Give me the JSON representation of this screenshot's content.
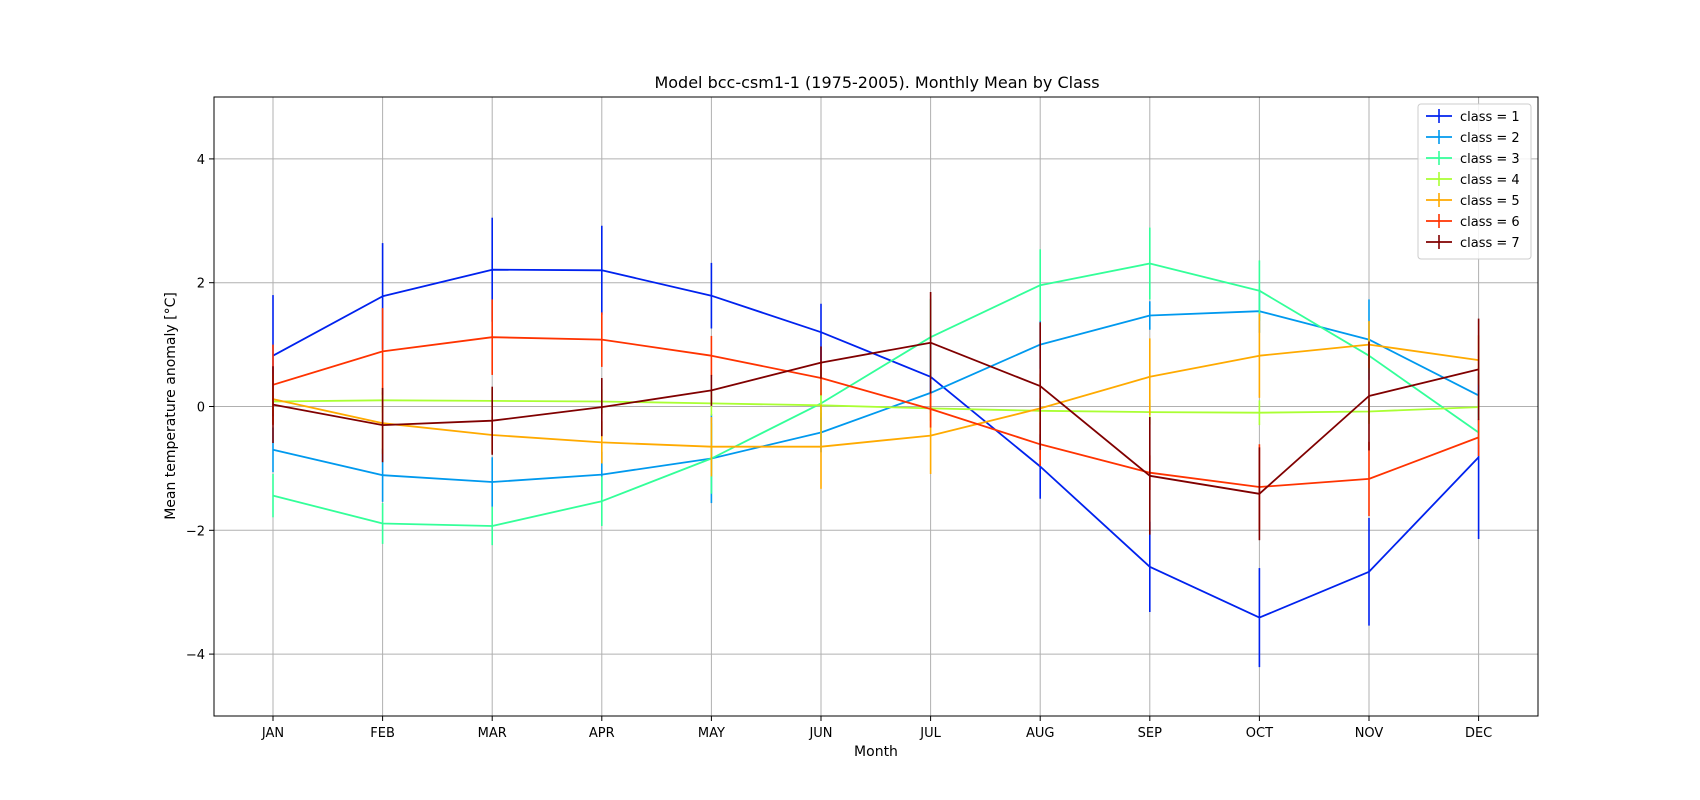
{
  "chart_data": {
    "type": "line",
    "title": "Model bcc-csm1-1 (1975-2005). Monthly Mean by Class",
    "xlabel": "Month",
    "ylabel": "Mean temperature anomaly [°C]",
    "categories": [
      "JAN",
      "FEB",
      "MAR",
      "APR",
      "MAY",
      "JUN",
      "JUL",
      "AUG",
      "SEP",
      "OCT",
      "NOV",
      "DEC"
    ],
    "ylim": [
      -5,
      5
    ],
    "yticks": [
      4,
      2,
      0,
      -2,
      -4
    ],
    "grid": true,
    "legend_position": "top-right",
    "series": [
      {
        "name": "class = 1",
        "color": "#0022ee",
        "values": [
          0.82,
          1.78,
          2.21,
          2.2,
          1.79,
          1.2,
          0.48,
          -0.97,
          -2.59,
          -3.41,
          -2.67,
          -0.82
        ],
        "errors": [
          0.98,
          0.86,
          0.84,
          0.72,
          0.53,
          0.46,
          0.55,
          0.52,
          0.73,
          0.8,
          0.87,
          1.32
        ]
      },
      {
        "name": "class = 2",
        "color": "#0099ee",
        "values": [
          -0.7,
          -1.11,
          -1.22,
          -1.1,
          -0.84,
          -0.42,
          0.22,
          1.0,
          1.47,
          1.54,
          1.08,
          0.18
        ],
        "errors": [
          0.36,
          0.43,
          0.4,
          0.37,
          0.72,
          0.32,
          0.33,
          0.39,
          0.23,
          0.35,
          0.65,
          0.36
        ]
      },
      {
        "name": "class = 3",
        "color": "#33ff99",
        "values": [
          -1.44,
          -1.89,
          -1.93,
          -1.53,
          -0.84,
          0.05,
          1.12,
          1.96,
          2.31,
          1.87,
          0.82,
          -0.42
        ],
        "errors": [
          0.35,
          0.33,
          0.31,
          0.4,
          0.57,
          0.56,
          0.62,
          0.58,
          0.58,
          0.49,
          0.28,
          0.2
        ]
      },
      {
        "name": "class = 4",
        "color": "#aaff33",
        "values": [
          0.08,
          0.1,
          0.09,
          0.08,
          0.05,
          0.02,
          -0.03,
          -0.07,
          -0.09,
          -0.1,
          -0.08,
          -0.01
        ],
        "errors": [
          0.2,
          0.2,
          0.2,
          0.2,
          0.2,
          0.2,
          0.2,
          0.2,
          0.2,
          0.2,
          0.2,
          0.2
        ]
      },
      {
        "name": "class = 5",
        "color": "#ffaa00",
        "values": [
          0.12,
          -0.27,
          -0.46,
          -0.58,
          -0.65,
          -0.65,
          -0.47,
          -0.03,
          0.48,
          0.82,
          1.0,
          0.75
        ],
        "errors": [
          0.4,
          0.5,
          0.3,
          0.34,
          0.48,
          0.68,
          0.62,
          0.56,
          0.62,
          0.68,
          0.38,
          0.4
        ]
      },
      {
        "name": "class = 6",
        "color": "#ff3300",
        "values": [
          0.35,
          0.89,
          1.12,
          1.08,
          0.82,
          0.46,
          -0.04,
          -0.61,
          -1.07,
          -1.3,
          -1.17,
          -0.5
        ],
        "errors": [
          0.65,
          0.7,
          0.61,
          0.44,
          0.32,
          0.28,
          0.3,
          0.35,
          0.28,
          0.69,
          0.6,
          0.3
        ]
      },
      {
        "name": "class = 7",
        "color": "#800000",
        "values": [
          0.03,
          -0.3,
          -0.23,
          -0.01,
          0.26,
          0.71,
          1.03,
          0.33,
          -1.12,
          -1.41,
          0.17,
          0.6
        ],
        "errors": [
          0.62,
          0.6,
          0.55,
          0.47,
          0.25,
          0.26,
          0.82,
          1.03,
          0.95,
          0.75,
          0.88,
          0.82
        ]
      }
    ]
  }
}
